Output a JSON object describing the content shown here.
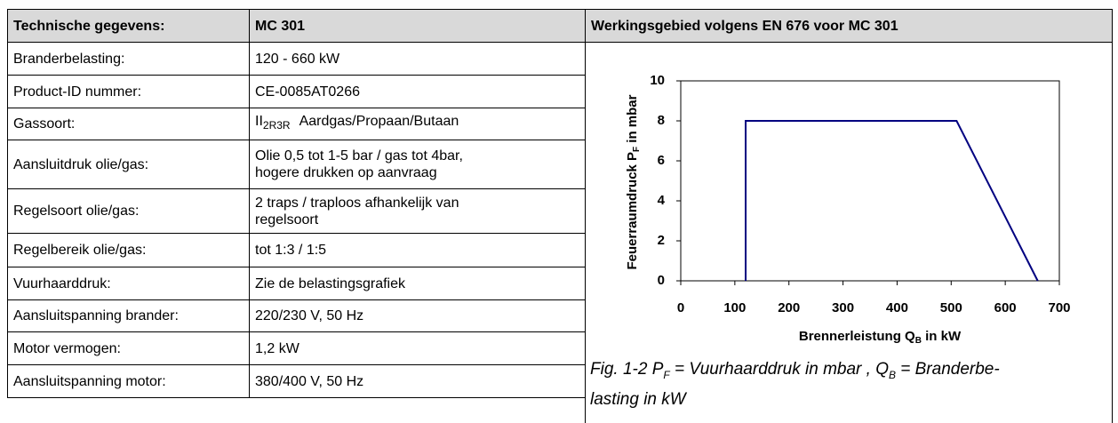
{
  "table": {
    "header": [
      "Technische gegevens:",
      "MC 301",
      "Werkingsgebied volgens EN 676 voor  MC 301"
    ],
    "rows": [
      {
        "label": "Branderbelasting:",
        "value": [
          "120 - 660 kW"
        ]
      },
      {
        "label": "Product-ID nummer:",
        "value": [
          "CE-0085AT0266"
        ]
      },
      {
        "label": "Gassoort:",
        "value_parts": [
          "II",
          "2R3R",
          "Aardgas/Propaan/Butaan"
        ]
      },
      {
        "label": "Aansluitdruk olie/gas:",
        "value": [
          "Olie 0,5 tot 1-5 bar / gas tot 4bar,",
          "hogere drukken op aanvraag"
        ]
      },
      {
        "label": "Regelsoort olie/gas:",
        "value": [
          "2 traps / traploos afhankelijk van",
          "regelsoort"
        ]
      },
      {
        "label": "Regelbereik olie/gas:",
        "value": [
          "tot 1:3 / 1:5"
        ]
      },
      {
        "label": "Vuurhaarddruk:",
        "value": [
          "Zie de belastingsgrafiek"
        ]
      },
      {
        "label": "Aansluitspanning brander:",
        "value": [
          "220/230 V, 50 Hz"
        ]
      },
      {
        "label": "Motor vermogen:",
        "value": [
          "1,2 kW"
        ]
      },
      {
        "label": "Aansluitspanning motor:",
        "value": [
          "380/400 V, 50 Hz"
        ]
      }
    ]
  },
  "chart_data": {
    "type": "line",
    "y_label": [
      "Feuerraumdruck P",
      "F",
      " in mbar"
    ],
    "x_label": [
      "Brennerleistung Q",
      "B",
      " in kW"
    ],
    "x": [
      120,
      120,
      510,
      660
    ],
    "values": [
      0,
      8,
      8,
      0
    ],
    "color": "#000080",
    "xlim": [
      0,
      700
    ],
    "ylim": [
      0,
      10
    ],
    "xticks": [
      0,
      100,
      200,
      300,
      400,
      500,
      600,
      700
    ],
    "yticks": [
      0,
      2,
      4,
      6,
      8,
      10
    ]
  },
  "caption": {
    "line1": [
      "Fig. 1-2 P",
      "F",
      " = Vuurhaarddruk in mbar , Q",
      "B",
      " = Branderbe-"
    ],
    "line2": "lasting in kW"
  }
}
